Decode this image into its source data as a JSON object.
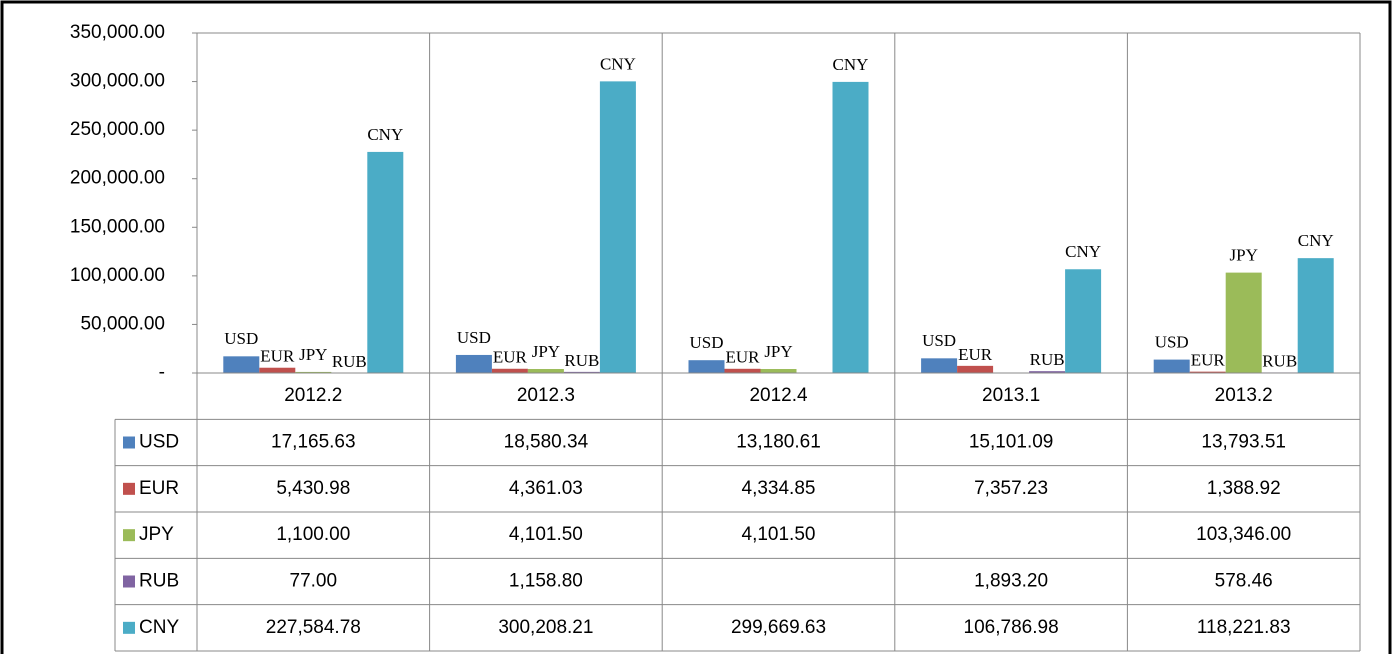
{
  "chart_data": {
    "type": "bar",
    "categories": [
      "2012.2",
      "2012.3",
      "2012.4",
      "2013.1",
      "2013.2"
    ],
    "series": [
      {
        "name": "USD",
        "color": "#4f81bd",
        "values": [
          17165.63,
          18580.34,
          13180.61,
          15101.09,
          13793.51
        ],
        "value_labels": [
          "17,165.63",
          "18,580.34",
          "13,180.61",
          "15,101.09",
          "13,793.51"
        ]
      },
      {
        "name": "EUR",
        "color": "#c0504d",
        "values": [
          5430.98,
          4361.03,
          4334.85,
          7357.23,
          1388.92
        ],
        "value_labels": [
          "5,430.98",
          "4,361.03",
          "4,334.85",
          "7,357.23",
          "1,388.92"
        ]
      },
      {
        "name": "JPY",
        "color": "#9bbb59",
        "values": [
          1100.0,
          4101.5,
          4101.5,
          null,
          103346.0
        ],
        "value_labels": [
          "1,100.00",
          "4,101.50",
          "4,101.50",
          null,
          "103,346.00"
        ]
      },
      {
        "name": "RUB",
        "color": "#8064a2",
        "values": [
          77.0,
          1158.8,
          null,
          1893.2,
          578.46
        ],
        "value_labels": [
          "77.00",
          "1,158.80",
          null,
          "1,893.20",
          "578.46"
        ]
      },
      {
        "name": "CNY",
        "color": "#4bacc6",
        "values": [
          227584.78,
          300208.21,
          299669.63,
          106786.98,
          118221.83
        ],
        "value_labels": [
          "227,584.78",
          "300,208.21",
          "299,669.63",
          "106,786.98",
          "118,221.83"
        ]
      }
    ],
    "ylim": [
      0,
      350000
    ],
    "yticks": [
      {
        "value": 0,
        "label": "-"
      },
      {
        "value": 50000,
        "label": "50,000.00"
      },
      {
        "value": 100000,
        "label": "100,000.00"
      },
      {
        "value": 150000,
        "label": "150,000.00"
      },
      {
        "value": 200000,
        "label": "200,000.00"
      },
      {
        "value": 250000,
        "label": "250,000.00"
      },
      {
        "value": 300000,
        "label": "300,000.00"
      },
      {
        "value": 350000,
        "label": "350,000.00"
      }
    ],
    "legend": "table"
  }
}
